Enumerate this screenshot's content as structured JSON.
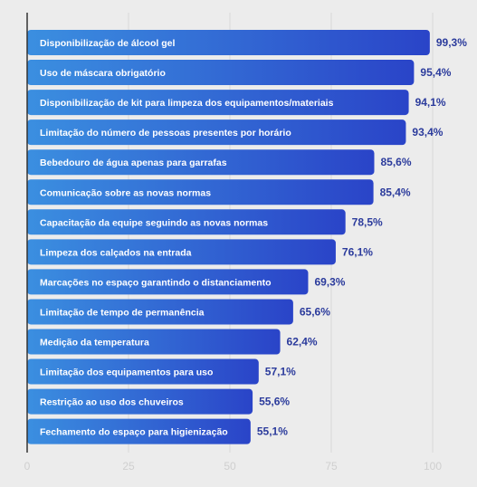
{
  "chart_data": {
    "type": "bar",
    "orientation": "horizontal",
    "categories": [
      "Disponibilização de álcool gel",
      "Uso de máscara obrigatório",
      "Disponibilização de kit para limpeza dos equipamentos/materiais",
      "Limitação do número de pessoas presentes por horário",
      "Bebedouro de água apenas para garrafas",
      "Comunicação sobre as novas normas",
      "Capacitação da equipe seguindo as novas normas",
      "Limpeza dos calçados na entrada",
      "Marcações no espaço garantindo o distanciamento",
      "Limitação de tempo de permanência",
      "Medição da temperatura",
      "Limitação dos equipamentos para uso",
      "Restrição ao uso dos chuveiros",
      "Fechamento do espaço para higienização"
    ],
    "values": [
      99.3,
      95.4,
      94.1,
      93.4,
      85.6,
      85.4,
      78.5,
      76.1,
      69.3,
      65.6,
      62.4,
      57.1,
      55.6,
      55.1
    ],
    "value_labels": [
      "99,3%",
      "95,4%",
      "94,1%",
      "93,4%",
      "85,6%",
      "85,4%",
      "78,5%",
      "76,1%",
      "69,3%",
      "65,6%",
      "62,4%",
      "57,1%",
      "55,6%",
      "55,1%"
    ],
    "xlim": [
      0,
      100
    ],
    "x_ticks": [
      0,
      25,
      50,
      75,
      100
    ],
    "x_tick_labels": [
      "0",
      "25",
      "50",
      "75",
      "100"
    ],
    "grid": true,
    "colors": {
      "background": "#ececec",
      "bar_start": "#3b8fe0",
      "bar_end": "#2a44c8",
      "value_text": "#2b3b9c",
      "grid": "#d9d9d9",
      "axis": "#333333",
      "tick_text": "#cfcfcf"
    }
  }
}
